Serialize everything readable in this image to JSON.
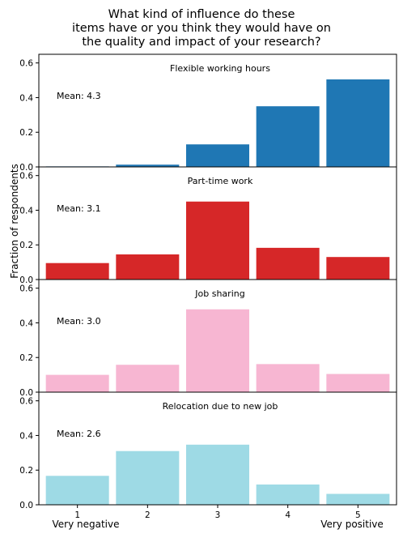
{
  "chart_data": {
    "type": "bar",
    "title_lines": [
      "What kind of influence do these",
      "items have or you think they would have on",
      "the quality and impact of your research?"
    ],
    "ylabel": "Fraction of respondents",
    "ylim": [
      0,
      0.65
    ],
    "yticks": [
      "0.0",
      "0.2",
      "0.4",
      "0.6"
    ],
    "categories": [
      "1",
      "2",
      "3",
      "4",
      "5"
    ],
    "xcaption_left": "Very negative",
    "xcaption_right": "Very positive",
    "grid": false,
    "series": [
      {
        "name": "Flexible working hours",
        "mean_label": "Mean: 4.3",
        "color": "#1f77b4",
        "values": [
          0.003,
          0.013,
          0.13,
          0.35,
          0.505
        ]
      },
      {
        "name": "Part-time work",
        "mean_label": "Mean: 3.1",
        "color": "#d62728",
        "values": [
          0.095,
          0.145,
          0.45,
          0.183,
          0.13
        ]
      },
      {
        "name": "Job sharing",
        "mean_label": "Mean: 3.0",
        "color": "#f7b6d2",
        "values": [
          0.1,
          0.158,
          0.478,
          0.162,
          0.105
        ]
      },
      {
        "name": "Relocation due to new job",
        "mean_label": "Mean: 2.6",
        "color": "#9edae5",
        "values": [
          0.167,
          0.31,
          0.347,
          0.117,
          0.063
        ]
      }
    ]
  }
}
